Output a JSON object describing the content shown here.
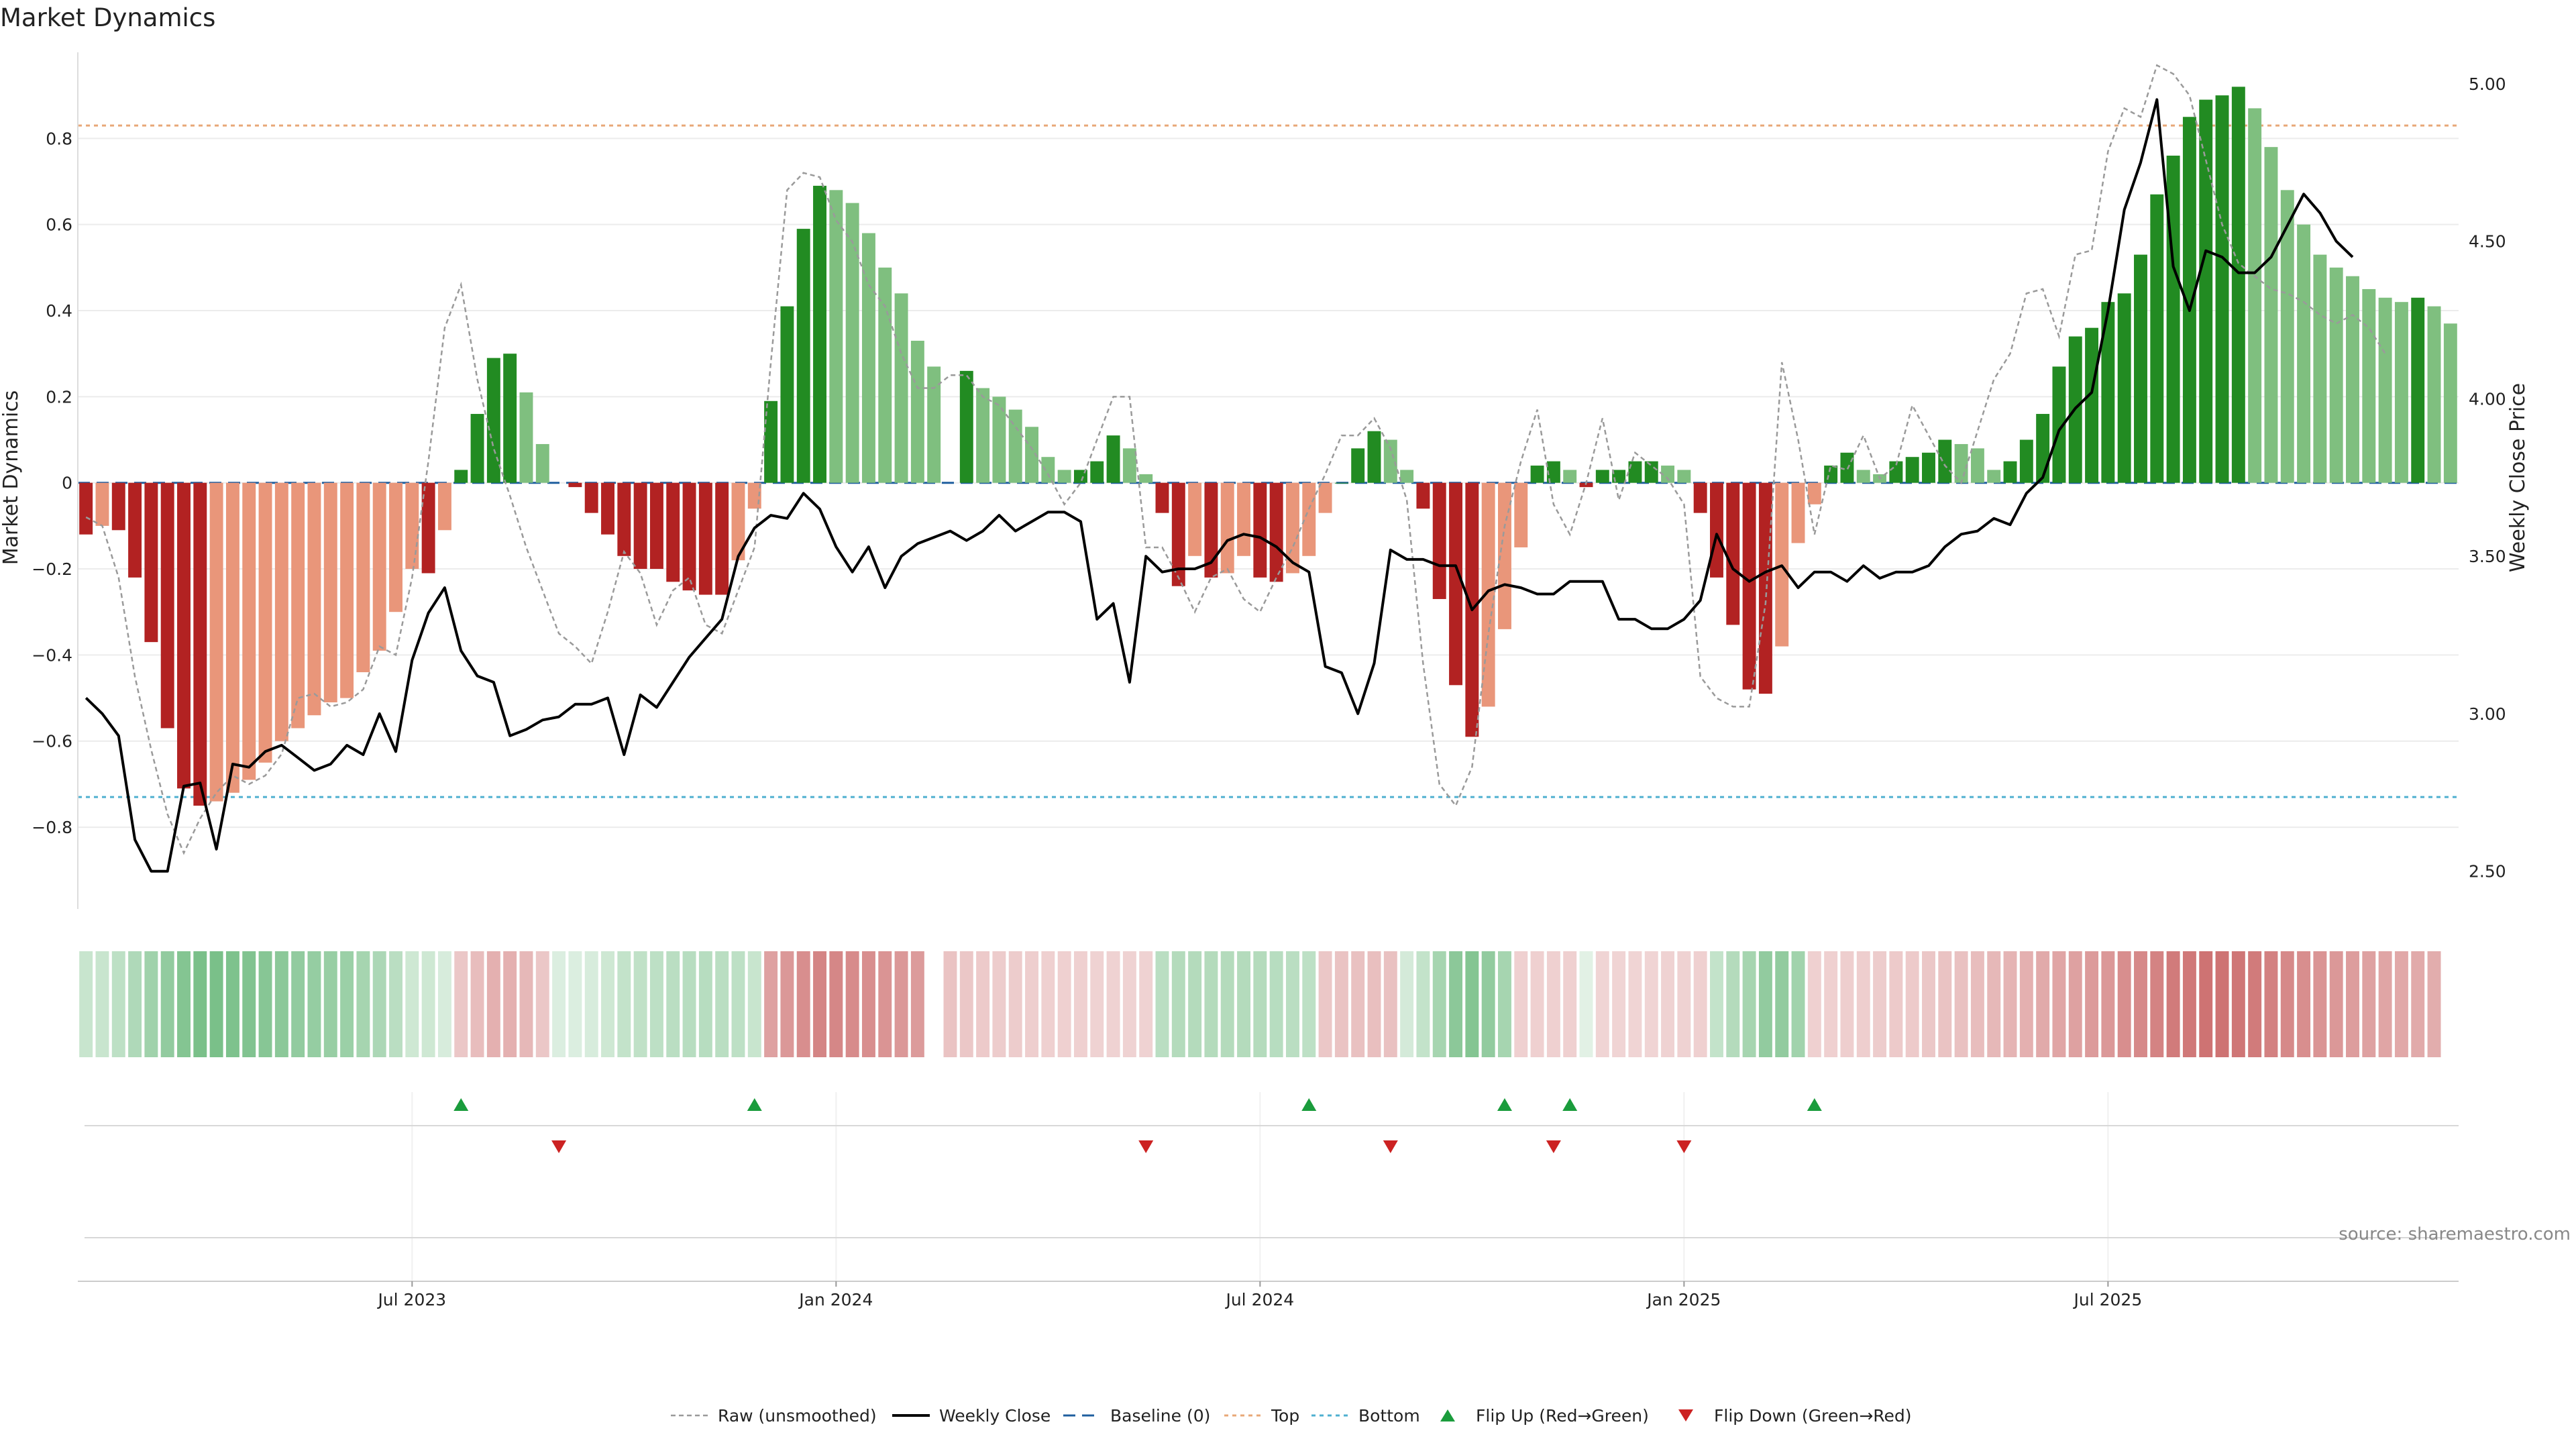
{
  "chart_data": {
    "type": "bar",
    "title": "Market Dynamics",
    "ylabel": "Market Dynamics",
    "y2label": "Weekly Close Price",
    "ylim": [
      -0.99,
      1.0
    ],
    "y2lim": [
      2.38,
      5.1
    ],
    "yticks": [
      "0.8",
      "0.6",
      "0.4",
      "0.2",
      "0",
      "−0.2",
      "−0.4",
      "−0.6",
      "−0.8"
    ],
    "yticks_values": [
      0.8,
      0.6,
      0.4,
      0.2,
      0,
      -0.2,
      -0.4,
      -0.6,
      -0.8
    ],
    "y2ticks": [
      "5.00",
      "4.50",
      "4.00",
      "3.50",
      "3.00",
      "2.50"
    ],
    "y2ticks_values": [
      5.0,
      4.5,
      4.0,
      3.5,
      3.0,
      2.5
    ],
    "xticks": [
      "Jul 2023",
      "Jan 2024",
      "Jul 2024",
      "Jan 2025",
      "Jul 2025"
    ],
    "xticks_index": [
      20,
      46,
      72,
      98,
      124
    ],
    "top_line": 0.83,
    "bottom_line": -0.73,
    "smoothed": [
      -0.12,
      -0.1,
      -0.11,
      -0.22,
      -0.37,
      -0.57,
      -0.71,
      -0.75,
      -0.74,
      -0.72,
      -0.69,
      -0.65,
      -0.6,
      -0.57,
      -0.54,
      -0.51,
      -0.5,
      -0.44,
      -0.39,
      -0.3,
      -0.2,
      -0.21,
      -0.11,
      0.03,
      0.16,
      0.29,
      0.3,
      0.21,
      0.09,
      null,
      -0.01,
      -0.07,
      -0.12,
      -0.17,
      -0.2,
      -0.2,
      -0.23,
      -0.25,
      -0.26,
      -0.26,
      -0.18,
      -0.06,
      0.19,
      0.41,
      0.59,
      0.69,
      0.68,
      0.65,
      0.58,
      0.5,
      0.44,
      0.33,
      0.27,
      null,
      0.26,
      0.22,
      0.2,
      0.17,
      0.13,
      0.06,
      0.03,
      0.03,
      0.05,
      0.11,
      0.08,
      0.02,
      -0.07,
      -0.24,
      -0.17,
      -0.22,
      -0.21,
      -0.17,
      -0.22,
      -0.23,
      -0.21,
      -0.17,
      -0.07,
      0.0,
      0.08,
      0.12,
      0.1,
      0.03,
      -0.06,
      -0.27,
      -0.47,
      -0.59,
      -0.52,
      -0.34,
      -0.15,
      0.04,
      0.05,
      0.03,
      -0.01,
      0.03,
      0.03,
      0.05,
      0.05,
      0.04,
      0.03,
      -0.07,
      -0.22,
      -0.33,
      -0.48,
      -0.49,
      -0.38,
      -0.14,
      -0.05,
      0.04,
      0.07,
      0.03,
      0.02,
      0.05,
      0.06,
      0.07,
      0.1,
      0.09,
      0.08,
      0.03,
      0.05,
      0.1,
      0.16,
      0.27,
      0.34,
      0.36,
      0.42,
      0.44,
      0.53,
      0.67,
      0.76,
      0.85,
      0.89,
      0.9,
      0.92,
      0.87,
      0.78,
      0.68,
      0.6,
      0.53,
      0.5,
      0.48,
      0.45,
      0.43,
      0.42,
      0.43,
      0.41,
      0.37
    ],
    "raw": [
      -0.08,
      -0.1,
      -0.22,
      -0.45,
      -0.62,
      -0.77,
      -0.86,
      -0.78,
      -0.72,
      -0.68,
      -0.7,
      -0.68,
      -0.63,
      -0.5,
      -0.49,
      -0.52,
      -0.51,
      -0.48,
      -0.38,
      -0.4,
      -0.22,
      0.05,
      0.36,
      0.46,
      0.24,
      0.08,
      -0.03,
      -0.15,
      -0.25,
      -0.35,
      -0.38,
      -0.42,
      -0.3,
      -0.16,
      -0.21,
      -0.33,
      -0.25,
      -0.22,
      -0.33,
      -0.35,
      -0.25,
      -0.15,
      0.28,
      0.68,
      0.72,
      0.71,
      0.61,
      0.56,
      0.46,
      0.41,
      0.3,
      0.22,
      0.22,
      0.25,
      0.25,
      0.2,
      0.18,
      0.13,
      0.08,
      0.02,
      -0.05,
      0.0,
      0.1,
      0.2,
      0.2,
      -0.15,
      -0.15,
      -0.22,
      -0.3,
      -0.22,
      -0.2,
      -0.27,
      -0.3,
      -0.22,
      -0.15,
      -0.06,
      0.02,
      0.11,
      0.11,
      0.15,
      0.08,
      -0.04,
      -0.42,
      -0.7,
      -0.75,
      -0.66,
      -0.35,
      -0.1,
      0.05,
      0.17,
      -0.05,
      -0.12,
      0.0,
      0.15,
      -0.04,
      0.07,
      0.04,
      0.01,
      -0.05,
      -0.45,
      -0.5,
      -0.52,
      -0.52,
      -0.28,
      0.28,
      0.1,
      -0.12,
      0.04,
      0.03,
      0.11,
      0.01,
      0.04,
      0.18,
      0.11,
      0.04,
      0.0,
      0.12,
      0.24,
      0.3,
      0.44,
      0.45,
      0.34,
      0.53,
      0.54,
      0.77,
      0.87,
      0.85,
      0.97,
      0.95,
      0.9,
      0.75,
      0.6,
      0.51,
      0.48,
      0.45,
      0.44,
      0.42,
      0.39,
      0.37,
      0.39,
      0.36,
      0.3
    ],
    "close": [
      3.05,
      3.0,
      2.93,
      2.6,
      2.5,
      2.5,
      2.77,
      2.78,
      2.57,
      2.84,
      2.83,
      2.88,
      2.9,
      2.86,
      2.82,
      2.84,
      2.9,
      2.87,
      3.0,
      2.88,
      3.17,
      3.32,
      3.4,
      3.2,
      3.12,
      3.1,
      2.93,
      2.95,
      2.98,
      2.99,
      3.03,
      3.03,
      3.05,
      2.87,
      3.06,
      3.02,
      3.1,
      3.18,
      3.24,
      3.3,
      3.5,
      3.59,
      3.63,
      3.62,
      3.7,
      3.65,
      3.53,
      3.45,
      3.53,
      3.4,
      3.5,
      3.54,
      3.56,
      3.58,
      3.55,
      3.58,
      3.63,
      3.58,
      3.61,
      3.64,
      3.64,
      3.61,
      3.3,
      3.35,
      3.1,
      3.5,
      3.45,
      3.46,
      3.46,
      3.48,
      3.55,
      3.57,
      3.56,
      3.53,
      3.48,
      3.45,
      3.15,
      3.13,
      3.0,
      3.16,
      3.52,
      3.49,
      3.49,
      3.47,
      3.47,
      3.33,
      3.39,
      3.41,
      3.4,
      3.38,
      3.38,
      3.42,
      3.42,
      3.42,
      3.3,
      3.3,
      3.27,
      3.27,
      3.3,
      3.36,
      3.57,
      3.46,
      3.42,
      3.45,
      3.47,
      3.4,
      3.45,
      3.45,
      3.42,
      3.47,
      3.43,
      3.45,
      3.45,
      3.47,
      3.53,
      3.57,
      3.58,
      3.62,
      3.6,
      3.7,
      3.75,
      3.9,
      3.97,
      4.02,
      4.28,
      4.6,
      4.75,
      4.95,
      4.42,
      4.28,
      4.47,
      4.45,
      4.4,
      4.4,
      4.45,
      4.55,
      4.65,
      4.59,
      4.5,
      4.45
    ],
    "context_shade": [
      0.28,
      0.28,
      0.33,
      0.4,
      0.48,
      0.55,
      0.62,
      0.67,
      0.67,
      0.65,
      0.63,
      0.6,
      0.58,
      0.55,
      0.53,
      0.52,
      0.5,
      0.45,
      0.42,
      0.35,
      0.25,
      0.25,
      0.2,
      -0.3,
      -0.35,
      -0.42,
      -0.42,
      -0.38,
      -0.3,
      0.18,
      0.18,
      0.2,
      0.25,
      0.3,
      0.32,
      0.33,
      0.35,
      0.36,
      0.36,
      0.35,
      0.33,
      0.28,
      -0.5,
      -0.55,
      -0.6,
      -0.65,
      -0.64,
      -0.62,
      -0.6,
      -0.57,
      -0.55,
      -0.53,
      null,
      -0.32,
      -0.3,
      -0.28,
      -0.27,
      -0.27,
      -0.26,
      -0.25,
      -0.25,
      -0.25,
      -0.24,
      -0.24,
      -0.24,
      -0.24,
      0.35,
      0.38,
      0.38,
      0.38,
      0.38,
      0.38,
      0.38,
      0.36,
      0.35,
      0.33,
      -0.3,
      -0.32,
      -0.33,
      -0.34,
      -0.33,
      0.22,
      0.3,
      0.45,
      0.58,
      0.62,
      0.55,
      0.45,
      -0.25,
      -0.25,
      -0.25,
      -0.25,
      0.15,
      -0.23,
      -0.23,
      -0.23,
      -0.23,
      -0.24,
      -0.24,
      -0.25,
      0.3,
      0.38,
      0.45,
      0.55,
      0.55,
      0.47,
      -0.25,
      -0.25,
      -0.26,
      -0.26,
      -0.27,
      -0.28,
      -0.28,
      -0.3,
      -0.32,
      -0.33,
      -0.35,
      -0.38,
      -0.4,
      -0.42,
      -0.45,
      -0.48,
      -0.5,
      -0.53,
      -0.55,
      -0.6,
      -0.63,
      -0.66,
      -0.7,
      -0.72,
      -0.75,
      -0.75,
      -0.73,
      -0.7,
      -0.67,
      -0.63,
      -0.6,
      -0.57,
      -0.55,
      -0.52,
      -0.5,
      -0.48,
      -0.46,
      -0.45,
      -0.44
    ],
    "flip_up_index": [
      23,
      41,
      75,
      87,
      91,
      106
    ],
    "flip_down_index": [
      29,
      65,
      80,
      90,
      98
    ],
    "colors": {
      "strong_red": "#b22222",
      "weak_red": "#e9967a",
      "strong_green": "#228b22",
      "weak_green": "#7fbf7f",
      "close_line": "#000000",
      "raw_line": "#9a9a9a",
      "baseline": "#1f5f9f",
      "top": "#e8a878",
      "bottom": "#4fb0d0",
      "flip_up": "#1a9c3c",
      "flip_down": "#cc2222"
    },
    "legend": {
      "position": "bottom-center",
      "items": [
        {
          "label": "Raw (unsmoothed)",
          "kind": "raw"
        },
        {
          "label": "Weekly Close",
          "kind": "close"
        },
        {
          "label": "Baseline (0)",
          "kind": "baseline"
        },
        {
          "label": "Top",
          "kind": "top"
        },
        {
          "label": "Bottom",
          "kind": "bottom"
        },
        {
          "label": "Flip Up (Red→Green)",
          "kind": "up"
        },
        {
          "label": "Flip Down (Green→Red)",
          "kind": "down"
        }
      ]
    },
    "source": "source: sharemaestro.com",
    "grid": true
  }
}
